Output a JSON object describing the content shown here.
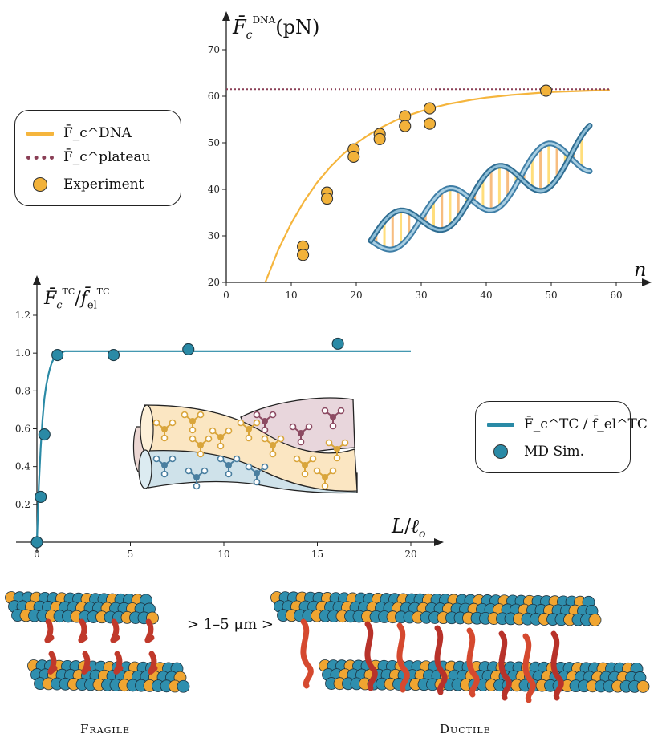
{
  "colors": {
    "dna_fit": "#f5b53d",
    "plateau": "#8a3f56",
    "experiment_marker": "#f2b23a",
    "tc_fit": "#2a8aa6",
    "md_marker": "#2a8aa6",
    "actin_blue": "#2f8fae",
    "actin_orange": "#f0a531",
    "crosslinker_red": "#c0392b"
  },
  "chart_data": [
    {
      "type": "scatter",
      "title": "",
      "ylabel": "F̄_c^DNA (pN)",
      "xlabel": "n",
      "xlim": [
        0,
        63
      ],
      "ylim": [
        20,
        75
      ],
      "xticks": [
        "0",
        "10",
        "20",
        "30",
        "40",
        "50",
        "60"
      ],
      "yticks": [
        "20",
        "30",
        "40",
        "50",
        "60",
        "70"
      ],
      "grid": false,
      "legend_position": "left",
      "series": [
        {
          "name": "F̄_c^DNA",
          "kind": "line",
          "x": [
            6,
            8,
            10,
            12,
            14,
            16,
            18,
            20,
            22,
            24,
            26,
            28,
            30,
            32,
            34,
            36,
            38,
            40,
            42,
            44,
            46,
            48,
            50,
            52,
            54,
            56,
            59
          ],
          "values": [
            20.0,
            27.0,
            32.7,
            37.5,
            41.5,
            44.8,
            47.6,
            49.9,
            51.8,
            53.4,
            54.8,
            55.9,
            56.8,
            57.6,
            58.3,
            58.8,
            59.3,
            59.7,
            60.0,
            60.3,
            60.5,
            60.7,
            60.9,
            61.0,
            61.1,
            61.2,
            61.3
          ]
        },
        {
          "name": "F̄_c^plateau",
          "kind": "dotted",
          "x": [
            0,
            59
          ],
          "values": [
            61.5,
            61.5
          ]
        },
        {
          "name": "Experiment",
          "kind": "points",
          "x": [
            11.8,
            11.8,
            15.5,
            15.5,
            19.6,
            19.6,
            23.6,
            23.6,
            27.5,
            27.5,
            31.3,
            31.3,
            49.2
          ],
          "values": [
            27.7,
            25.9,
            39.3,
            38.0,
            48.6,
            47.0,
            51.9,
            50.8,
            55.7,
            53.6,
            57.4,
            54.1,
            61.2
          ]
        }
      ]
    },
    {
      "type": "scatter",
      "title": "",
      "ylabel": "F̄_c^TC / f̄_el^TC",
      "xlabel": "L / ℓ_o",
      "xlim": [
        -1,
        21
      ],
      "ylim": [
        -0.03,
        1.3
      ],
      "xticks": [
        "0",
        "5",
        "10",
        "15",
        "20"
      ],
      "yticks": [
        "0.2",
        "0.4",
        "0.6",
        "0.8",
        "1.0",
        "1.2"
      ],
      "grid": false,
      "legend_position": "right",
      "series": [
        {
          "name": "F̄_c^TC / f̄_el^TC",
          "kind": "line",
          "x": [
            0,
            0.1,
            0.2,
            0.3,
            0.4,
            0.5,
            0.6,
            0.7,
            0.8,
            0.9,
            1.0,
            1.2,
            1.5,
            2,
            3,
            5,
            10,
            20
          ],
          "values": [
            0.0,
            0.29,
            0.5,
            0.65,
            0.76,
            0.83,
            0.88,
            0.92,
            0.95,
            0.97,
            0.98,
            1.0,
            1.01,
            1.01,
            1.01,
            1.01,
            1.01,
            1.01
          ]
        },
        {
          "name": "MD Sim.",
          "kind": "points",
          "x": [
            0.0,
            0.2,
            0.4,
            1.1,
            4.1,
            8.1,
            16.1
          ],
          "values": [
            0.0,
            0.24,
            0.57,
            0.99,
            0.99,
            1.02,
            1.05
          ]
        }
      ]
    }
  ],
  "legends": {
    "top": {
      "line_label": "F̄_c^DNA",
      "dotted_label": "F̄_c^plateau",
      "marker_label": "Experiment"
    },
    "middle": {
      "line_label": "F̄_c^TC / f̄_el^TC",
      "marker_label": "MD Sim."
    }
  },
  "bottom": {
    "left_caption": "Fragile",
    "right_caption": "Ductile",
    "range_label": "> 1–5 μm >"
  }
}
